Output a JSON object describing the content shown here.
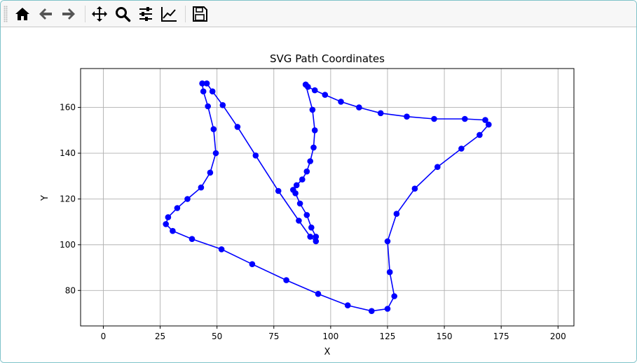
{
  "toolbar": {
    "buttons": [
      {
        "name": "home-icon",
        "label": "Home"
      },
      {
        "name": "back-icon",
        "label": "Back"
      },
      {
        "name": "forward-icon",
        "label": "Forward"
      },
      {
        "name": "pan-icon",
        "label": "Pan"
      },
      {
        "name": "zoom-icon",
        "label": "Zoom"
      },
      {
        "name": "configure-subplots-icon",
        "label": "Subplots"
      },
      {
        "name": "edit-axis-icon",
        "label": "Customize"
      },
      {
        "name": "save-icon",
        "label": "Save"
      }
    ]
  },
  "chart_data": {
    "type": "line",
    "title": "SVG Path Coordinates",
    "xlabel": "X",
    "ylabel": "Y",
    "xlim": [
      -10,
      207
    ],
    "ylim": [
      64.5,
      177
    ],
    "xticks": [
      0,
      25,
      50,
      75,
      100,
      125,
      150,
      175,
      200
    ],
    "yticks": [
      80,
      100,
      120,
      140,
      160
    ],
    "grid": true,
    "color": "#0000ff",
    "marker": "circle",
    "series": [
      {
        "points": [
          [
            89,
            170
          ],
          [
            90,
            169
          ],
          [
            93,
            167.5
          ],
          [
            97.5,
            165.5
          ],
          [
            104.5,
            162.5
          ],
          [
            112.5,
            160
          ],
          [
            122,
            157.5
          ],
          [
            133.5,
            156
          ],
          [
            145.5,
            155
          ],
          [
            159,
            155
          ],
          [
            168,
            154.5
          ],
          [
            169.5,
            152.5
          ],
          [
            165.5,
            148
          ],
          [
            157.5,
            142
          ],
          [
            147,
            134
          ],
          [
            137,
            124.5
          ],
          [
            129,
            113.5
          ],
          [
            125,
            101.5
          ],
          [
            126,
            88
          ],
          [
            128,
            77.5
          ],
          [
            125,
            72
          ],
          [
            118,
            71
          ],
          [
            107.5,
            73.5
          ],
          [
            94.5,
            78.5
          ],
          [
            80.5,
            84.5
          ],
          [
            65.5,
            91.5
          ],
          [
            52,
            98
          ],
          [
            39,
            102.5
          ],
          [
            30.5,
            106
          ],
          [
            27.5,
            109
          ],
          [
            28.5,
            112
          ],
          [
            32.5,
            116
          ],
          [
            37,
            120
          ],
          [
            43,
            125
          ],
          [
            47,
            131.5
          ],
          [
            49.5,
            140
          ],
          [
            48.5,
            150.5
          ],
          [
            46,
            160.5
          ],
          [
            44,
            167
          ],
          [
            43.5,
            170.5
          ],
          [
            45.5,
            170.5
          ],
          [
            48,
            167
          ],
          [
            52.5,
            161
          ],
          [
            59,
            151.5
          ],
          [
            67,
            139
          ],
          [
            77,
            123.5
          ],
          [
            86,
            110.5
          ],
          [
            91,
            103.5
          ],
          [
            93.5,
            101.5
          ],
          [
            93.5,
            103.5
          ],
          [
            91.5,
            107.5
          ],
          [
            89.5,
            113
          ],
          [
            86.5,
            118
          ],
          [
            84.5,
            122.5
          ],
          [
            83.5,
            124
          ],
          [
            85,
            126
          ],
          [
            87.5,
            128.5
          ],
          [
            89.5,
            132
          ],
          [
            91,
            136.5
          ],
          [
            92.5,
            142.5
          ],
          [
            93,
            150
          ],
          [
            92,
            159
          ],
          [
            89,
            170
          ]
        ]
      }
    ]
  }
}
